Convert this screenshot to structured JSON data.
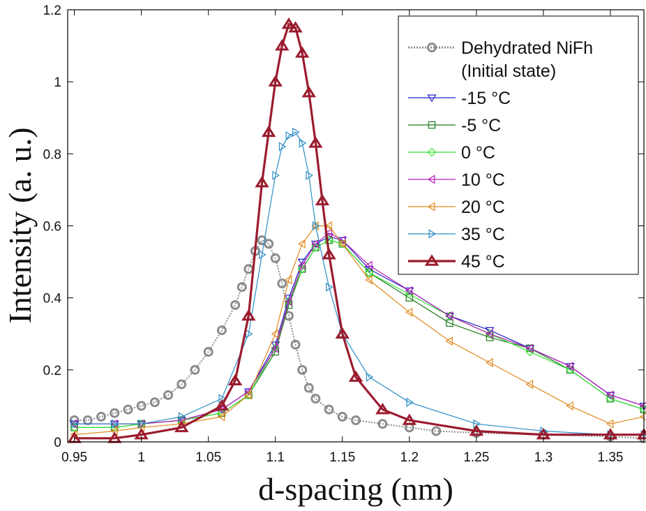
{
  "chart_data": {
    "type": "line",
    "xlabel": "d-spacing (nm)",
    "ylabel": "Intensity (a. u.)",
    "xlim": [
      0.945,
      1.375
    ],
    "ylim": [
      0,
      1.2
    ],
    "xticks": [
      "0.95",
      "1",
      "1.05",
      "1.1",
      "1.15",
      "1.2",
      "1.25",
      "1.3",
      "1.35"
    ],
    "xtick_values": [
      0.95,
      1.0,
      1.05,
      1.1,
      1.15,
      1.2,
      1.25,
      1.3,
      1.35
    ],
    "yticks": [
      "0",
      "0.2",
      "0.4",
      "0.6",
      "0.8",
      "1",
      "1.2"
    ],
    "ytick_values": [
      0,
      0.2,
      0.4,
      0.6,
      0.8,
      1.0,
      1.2
    ],
    "grid": false,
    "legend_position": "top-right",
    "series": [
      {
        "name": "Dehydrated NiFh",
        "name_line2": "(Initial state)",
        "color": "#8c8c8c",
        "marker": "circle",
        "x": [
          0.95,
          0.96,
          0.97,
          0.98,
          0.99,
          1.0,
          1.01,
          1.02,
          1.03,
          1.04,
          1.05,
          1.06,
          1.07,
          1.075,
          1.08,
          1.085,
          1.09,
          1.095,
          1.1,
          1.105,
          1.11,
          1.115,
          1.12,
          1.125,
          1.13,
          1.14,
          1.15,
          1.16,
          1.18,
          1.2,
          1.22,
          1.25,
          1.3,
          1.35,
          1.375
        ],
        "y": [
          0.06,
          0.06,
          0.07,
          0.08,
          0.09,
          0.1,
          0.11,
          0.13,
          0.16,
          0.2,
          0.25,
          0.31,
          0.38,
          0.43,
          0.48,
          0.53,
          0.56,
          0.55,
          0.51,
          0.44,
          0.35,
          0.27,
          0.2,
          0.15,
          0.12,
          0.09,
          0.07,
          0.06,
          0.05,
          0.04,
          0.03,
          0.025,
          0.02,
          0.015,
          0.01
        ]
      },
      {
        "name": "-15 °C",
        "color": "#2323c8",
        "marker": "triangle-down",
        "x": [
          0.95,
          0.98,
          1.0,
          1.03,
          1.06,
          1.08,
          1.1,
          1.11,
          1.12,
          1.13,
          1.14,
          1.15,
          1.17,
          1.2,
          1.23,
          1.26,
          1.29,
          1.32,
          1.35,
          1.375
        ],
        "y": [
          0.05,
          0.05,
          0.05,
          0.06,
          0.09,
          0.14,
          0.27,
          0.4,
          0.5,
          0.55,
          0.57,
          0.56,
          0.48,
          0.42,
          0.35,
          0.31,
          0.26,
          0.21,
          0.13,
          0.1
        ]
      },
      {
        "name": "-5 °C",
        "color": "#1e7a1e",
        "marker": "square",
        "x": [
          0.95,
          0.98,
          1.0,
          1.03,
          1.06,
          1.08,
          1.1,
          1.11,
          1.12,
          1.13,
          1.14,
          1.15,
          1.17,
          1.2,
          1.23,
          1.26,
          1.29,
          1.32,
          1.35,
          1.375
        ],
        "y": [
          0.04,
          0.04,
          0.05,
          0.06,
          0.08,
          0.13,
          0.25,
          0.38,
          0.48,
          0.54,
          0.56,
          0.55,
          0.47,
          0.4,
          0.33,
          0.29,
          0.26,
          0.2,
          0.12,
          0.09
        ]
      },
      {
        "name": "0 °C",
        "color": "#33e033",
        "marker": "diamond",
        "x": [
          0.95,
          0.98,
          1.0,
          1.03,
          1.06,
          1.08,
          1.1,
          1.11,
          1.12,
          1.13,
          1.14,
          1.15,
          1.17,
          1.2,
          1.23,
          1.26,
          1.29,
          1.32,
          1.35,
          1.375
        ],
        "y": [
          0.04,
          0.04,
          0.05,
          0.06,
          0.08,
          0.13,
          0.26,
          0.39,
          0.48,
          0.54,
          0.56,
          0.55,
          0.47,
          0.41,
          0.35,
          0.3,
          0.25,
          0.2,
          0.12,
          0.09
        ]
      },
      {
        "name": "10 °C",
        "color": "#b41eb4",
        "marker": "triangle-left",
        "x": [
          0.95,
          0.98,
          1.0,
          1.03,
          1.06,
          1.08,
          1.1,
          1.11,
          1.12,
          1.13,
          1.14,
          1.15,
          1.17,
          1.2,
          1.23,
          1.26,
          1.29,
          1.32,
          1.35,
          1.375
        ],
        "y": [
          0.05,
          0.05,
          0.05,
          0.06,
          0.09,
          0.14,
          0.26,
          0.39,
          0.49,
          0.55,
          0.58,
          0.56,
          0.49,
          0.42,
          0.35,
          0.3,
          0.26,
          0.21,
          0.13,
          0.1
        ]
      },
      {
        "name": "20 °C",
        "color": "#e08a1e",
        "marker": "triangle-left",
        "x": [
          0.95,
          0.98,
          1.0,
          1.03,
          1.06,
          1.08,
          1.1,
          1.11,
          1.12,
          1.13,
          1.14,
          1.15,
          1.17,
          1.2,
          1.23,
          1.26,
          1.29,
          1.32,
          1.35,
          1.375
        ],
        "y": [
          0.02,
          0.03,
          0.04,
          0.05,
          0.07,
          0.13,
          0.3,
          0.45,
          0.55,
          0.6,
          0.6,
          0.55,
          0.45,
          0.36,
          0.28,
          0.22,
          0.16,
          0.1,
          0.05,
          0.07
        ]
      },
      {
        "name": "35 °C",
        "color": "#2b8cc4",
        "marker": "triangle-right",
        "x": [
          0.95,
          0.98,
          1.0,
          1.03,
          1.06,
          1.08,
          1.09,
          1.1,
          1.105,
          1.11,
          1.115,
          1.12,
          1.125,
          1.13,
          1.14,
          1.15,
          1.17,
          1.2,
          1.25,
          1.3,
          1.35,
          1.375
        ],
        "y": [
          0.05,
          0.05,
          0.05,
          0.07,
          0.12,
          0.3,
          0.52,
          0.74,
          0.82,
          0.85,
          0.86,
          0.83,
          0.74,
          0.6,
          0.43,
          0.3,
          0.18,
          0.11,
          0.05,
          0.03,
          0.02,
          0.02
        ]
      },
      {
        "name": "45 °C",
        "color": "#9b1b2e",
        "marker": "triangle-up",
        "x": [
          0.95,
          0.98,
          1.0,
          1.03,
          1.06,
          1.07,
          1.08,
          1.09,
          1.095,
          1.1,
          1.105,
          1.11,
          1.115,
          1.12,
          1.125,
          1.13,
          1.135,
          1.14,
          1.15,
          1.16,
          1.18,
          1.2,
          1.25,
          1.3,
          1.35,
          1.375
        ],
        "y": [
          0.01,
          0.01,
          0.02,
          0.04,
          0.1,
          0.17,
          0.35,
          0.72,
          0.86,
          1.0,
          1.1,
          1.16,
          1.15,
          1.08,
          0.97,
          0.83,
          0.67,
          0.52,
          0.3,
          0.18,
          0.09,
          0.06,
          0.03,
          0.02,
          0.02,
          0.02
        ]
      }
    ]
  }
}
